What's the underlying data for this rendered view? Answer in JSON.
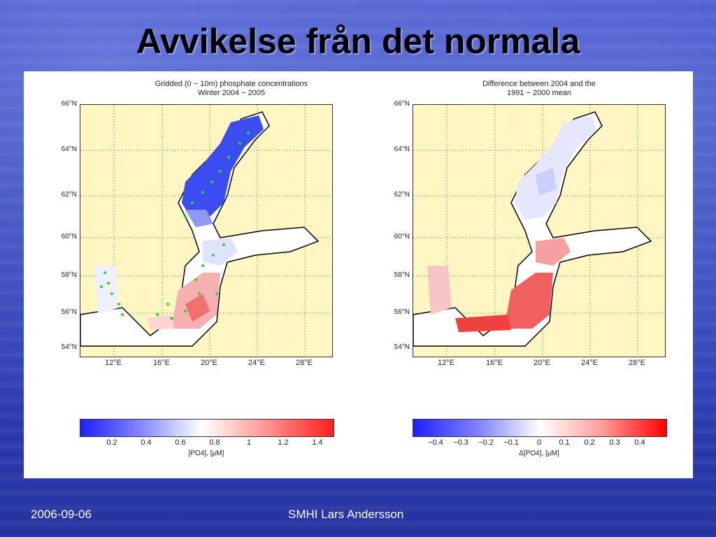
{
  "slide": {
    "title": "Avvikelse från det normala",
    "footer_date": "2006-09-06",
    "footer_author": "SMHI  Lars Andersson"
  },
  "left_map": {
    "title_line1": "Gridded (0 − 10m) phosphate concentrations",
    "title_line2": "Winter 2004 − 2005",
    "lat_labels": [
      "66°N",
      "64°N",
      "62°N",
      "60°N",
      "58°N",
      "56°N",
      "54°N"
    ],
    "lon_labels": [
      "12°E",
      "16°E",
      "20°E",
      "24°E",
      "28°E"
    ],
    "colorbar_ticks": [
      "0.2",
      "0.4",
      "0.6",
      "0.8",
      "1",
      "1.2",
      "1.4"
    ],
    "colorbar_label": "[PO4], [µM]"
  },
  "right_map": {
    "title_line1": "Difference between 2004 and the",
    "title_line2": "1991 − 2000 mean",
    "lat_labels": [
      "66°N",
      "64°N",
      "62°N",
      "60°N",
      "58°N",
      "56°N",
      "54°N"
    ],
    "lon_labels": [
      "12°E",
      "16°E",
      "20°E",
      "24°E",
      "28°E"
    ],
    "colorbar_ticks": [
      "−0.4",
      "−0.3",
      "−0.2",
      "−0.1",
      "0",
      "0.1",
      "0.2",
      "0.3",
      "0.4"
    ],
    "colorbar_label": "Δ[PO4], [µM]"
  },
  "colors": {
    "land": "#fff6c2",
    "cmap_low": "#1f1fff",
    "cmap_mid": "#ffffff",
    "cmap_high": "#ff1f1f",
    "station_dots": "#1fe01f"
  }
}
